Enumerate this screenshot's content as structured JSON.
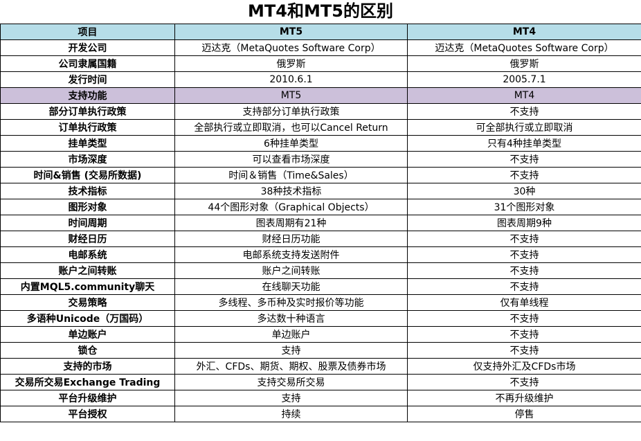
{
  "title": "MT4和MT5的区别",
  "headers": [
    "项目",
    "MT5",
    "MT4"
  ],
  "info_rows": [
    {
      "label": "开发公司",
      "mt5": "迈达克（MetaQuotes Software Corp）",
      "mt4": "迈达克（MetaQuotes Software Corp）"
    },
    {
      "label": "公司隶属国籍",
      "mt5": "俄罗斯",
      "mt4": "俄罗斯"
    },
    {
      "label": "发行时间",
      "mt5": "2010.6.1",
      "mt4": "2005.7.1"
    }
  ],
  "section": {
    "label": "支持功能",
    "mt5": "MT5",
    "mt4": "MT4"
  },
  "feature_rows": [
    {
      "label": "部分订单执行政策",
      "mt5": "支持部分订单执行政策",
      "mt4": "不支持"
    },
    {
      "label": "订单执行政策",
      "mt5": "全部执行或立即取消，也可以Cancel Return",
      "mt4": "可全部执行或立即取消"
    },
    {
      "label": "挂单类型",
      "mt5": "6种挂单类型",
      "mt4": "只有4种挂单类型"
    },
    {
      "label": "市场深度",
      "mt5": "可以查看市场深度",
      "mt4": "不支持"
    },
    {
      "label": "时间&销售 (交易所数据)",
      "mt5": "时间＆销售（Time&Sales）",
      "mt4": "不支持"
    },
    {
      "label": "技术指标",
      "mt5": "38种技术指标",
      "mt4": "30种"
    },
    {
      "label": "图形对象",
      "mt5": "44个图形对象（Graphical Objects）",
      "mt4": "31个图形对象"
    },
    {
      "label": "时间周期",
      "mt5": "图表周期有21种",
      "mt4": "图表周期9种"
    },
    {
      "label": "财经日历",
      "mt5": "财经日历功能",
      "mt4": "不支持"
    },
    {
      "label": "电邮系统",
      "mt5": "电邮系统支持发送附件",
      "mt4": "不支持"
    },
    {
      "label": "账户之间转账",
      "mt5": "账户之间转账",
      "mt4": "不支持"
    },
    {
      "label": "内置MQL5.community聊天",
      "mt5": "在线聊天功能",
      "mt4": "不支持"
    },
    {
      "label": "交易策略",
      "mt5": "多线程、多币种及实时报价等功能",
      "mt4": "仅有单线程"
    },
    {
      "label": "多语种Unicode（万国码）",
      "mt5": "多达数十种语言",
      "mt4": "不支持"
    },
    {
      "label": "单边账户",
      "mt5": "单边账户",
      "mt4": "不支持"
    },
    {
      "label": "锁仓",
      "mt5": "支持",
      "mt4": "不支持"
    },
    {
      "label": "支持的市场",
      "mt5": "外汇、CFDs、期货、期权、股票及债券市场",
      "mt4": "仅支持外汇及CFDs市场"
    },
    {
      "label": "交易所交易Exchange Trading",
      "mt5": "支持交易所交易",
      "mt4": "不支持"
    },
    {
      "label": "平台升级维护",
      "mt5": "支持",
      "mt4": "不再升级维护"
    },
    {
      "label": "平台授权",
      "mt5": "持续",
      "mt4": "停售"
    }
  ]
}
